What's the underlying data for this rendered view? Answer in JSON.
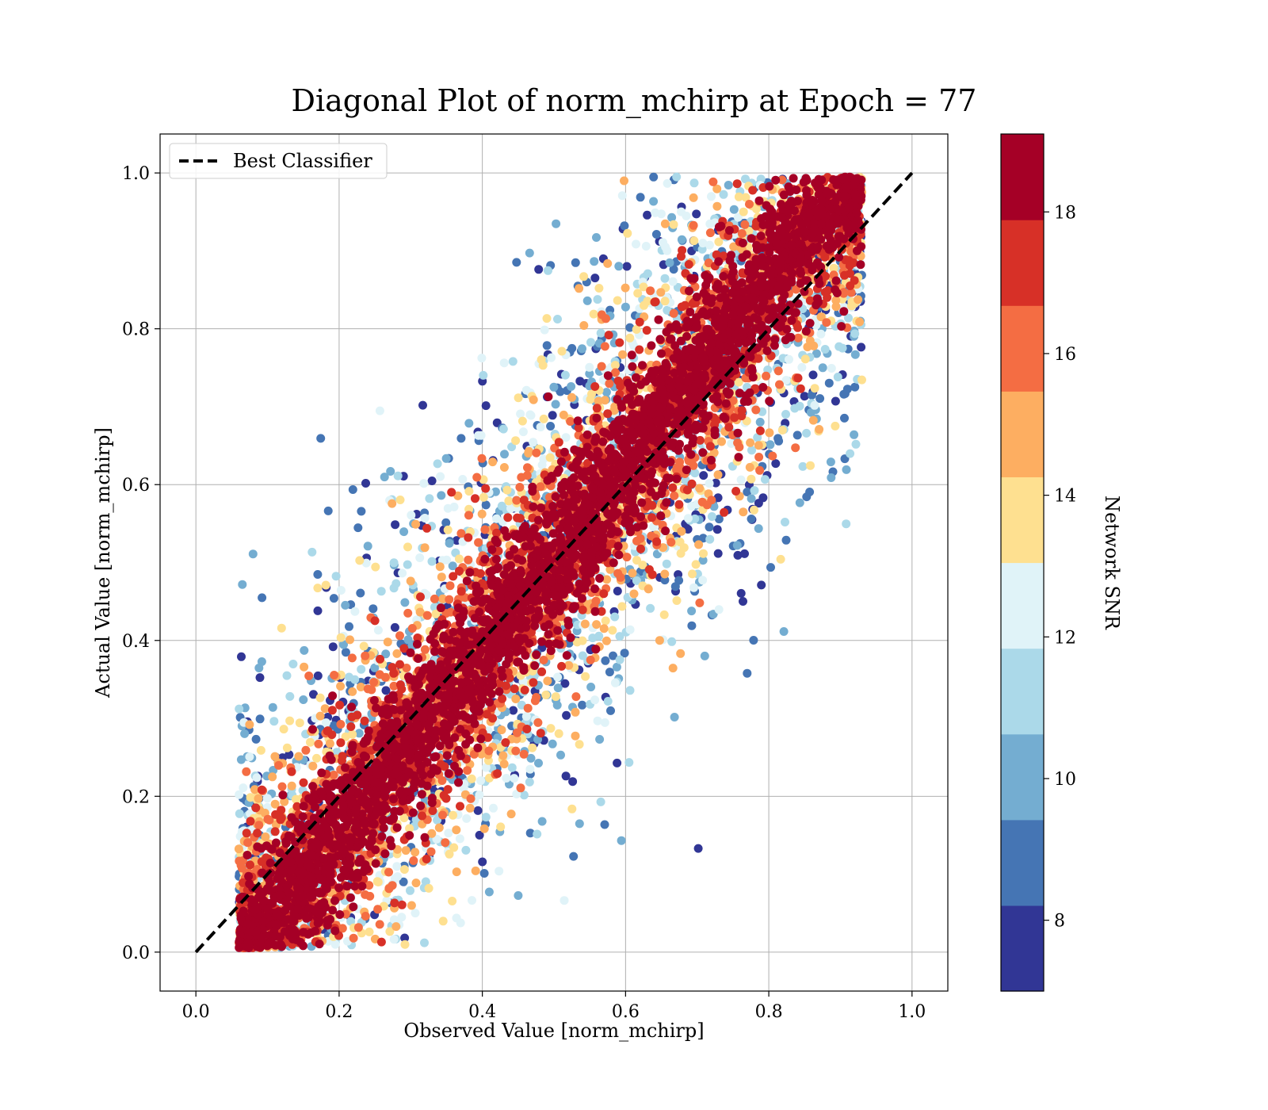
{
  "chart_data": {
    "type": "scatter",
    "title": "Diagonal Plot of norm_mchirp at Epoch = 77",
    "xlabel": "Observed Value [norm_mchirp]",
    "ylabel": "Actual Value [norm_mchirp]",
    "xlim": [
      -0.05,
      1.05
    ],
    "ylim": [
      -0.05,
      1.05
    ],
    "xticks": [
      "0.0",
      "0.2",
      "0.4",
      "0.6",
      "0.8",
      "1.0"
    ],
    "yticks": [
      "0.0",
      "0.2",
      "0.4",
      "0.6",
      "0.8",
      "1.0"
    ],
    "grid": true,
    "legend": {
      "position": "top-left",
      "entries": [
        "Best Classifier"
      ]
    },
    "reference_line": {
      "name": "Best Classifier",
      "x": [
        0.0,
        1.0
      ],
      "y": [
        0.0,
        1.0
      ],
      "style": "dashed",
      "color": "#000000"
    },
    "colorbar": {
      "label": "Network SNR",
      "range": [
        7,
        19
      ],
      "ticks": [
        "8",
        "10",
        "12",
        "14",
        "16",
        "18"
      ],
      "tick_values": [
        8,
        10,
        12,
        14,
        16,
        18
      ],
      "colors": [
        "#313695",
        "#4575b4",
        "#74add1",
        "#abd9e9",
        "#e0f3f8",
        "#fee090",
        "#fdae61",
        "#f46d43",
        "#d73027",
        "#a50026"
      ]
    },
    "points_description_model": {
      "note_x_range": [
        0.06,
        0.93
      ],
      "high_snr_spread": 0.035,
      "low_snr_spread": 0.16
    }
  }
}
